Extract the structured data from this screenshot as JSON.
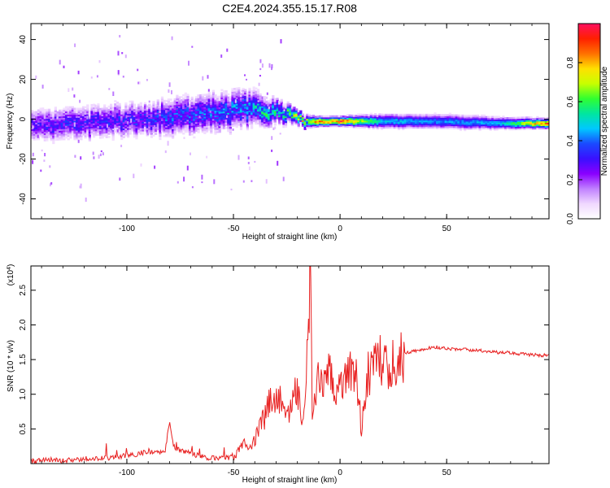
{
  "title": "C2E4.2024.355.15.17.R08",
  "colors": {
    "snr_line": "#e82020",
    "axis": "#000000",
    "colormap": [
      "#ffffff",
      "#f0d8ff",
      "#c080ff",
      "#8a00ff",
      "#3a10ff",
      "#1a4aff",
      "#00c8ff",
      "#00e6a0",
      "#30ff30",
      "#c8ff00",
      "#ffe000",
      "#ff7000",
      "#ff2000",
      "#ff1060"
    ]
  },
  "chart_data": [
    {
      "type": "heatmap",
      "name": "spectrogram",
      "title": "C2E4.2024.355.15.17.R08",
      "xlabel": "Height of straight line (km)",
      "ylabel": "Frequency (Hz)",
      "xlim": [
        -145,
        98
      ],
      "ylim": [
        -50,
        48
      ],
      "x_ticks": [
        -100,
        -50,
        0,
        50
      ],
      "y_ticks": [
        -40,
        -20,
        0,
        20,
        40
      ],
      "x_tick_labels": [
        "-100",
        "-50",
        "0",
        "50"
      ],
      "y_tick_labels": [
        "-40",
        "-20",
        "0",
        "20",
        "40"
      ],
      "ridge": {
        "x": [
          -145,
          -130,
          -120,
          -110,
          -100,
          -90,
          -80,
          -70,
          -60,
          -50,
          -45,
          -40,
          -35,
          -30,
          -25,
          -20,
          -15,
          -10,
          -5,
          0,
          10,
          20,
          40,
          60,
          75,
          98
        ],
        "freq_hz": [
          -3,
          -2,
          -2,
          -1,
          0,
          0,
          1,
          2,
          3,
          4,
          5,
          5,
          4,
          3,
          2,
          0,
          -1,
          -1,
          -1,
          -1,
          -1,
          -1,
          -1,
          -1.5,
          -2,
          -2
        ],
        "amplitude": [
          0.3,
          0.35,
          0.35,
          0.35,
          0.35,
          0.35,
          0.4,
          0.4,
          0.42,
          0.45,
          0.45,
          0.5,
          0.55,
          0.55,
          0.6,
          0.8,
          0.7,
          0.95,
          0.85,
          0.95,
          0.7,
          0.5,
          0.45,
          0.45,
          0.5,
          0.95
        ],
        "spread_hz": [
          7,
          7,
          7,
          7,
          7,
          7,
          8,
          8,
          8,
          8,
          8,
          7,
          6,
          5,
          4,
          3,
          2.5,
          2,
          2,
          2,
          2.5,
          3,
          3,
          3,
          2.5,
          2
        ]
      },
      "colorbar": {
        "label": "Normalized spectral amplitude",
        "range": [
          0,
          1
        ],
        "ticks": [
          0.0,
          0.2,
          0.4,
          0.6,
          0.8
        ],
        "tick_labels": [
          "0.0",
          "0.2",
          "0.4",
          "0.6",
          "0.8"
        ]
      }
    },
    {
      "type": "line",
      "name": "snr",
      "xlabel": "Height of straight line (km)",
      "ylabel": "SNR (10 * v/v)",
      "exponent_label": "(x10",
      "exponent_sup": "4",
      "exponent_close": ")",
      "xlim": [
        -145,
        98
      ],
      "ylim": [
        0,
        2.85
      ],
      "x_ticks": [
        -100,
        -50,
        0,
        50
      ],
      "y_ticks": [
        0.5,
        1.0,
        1.5,
        2.0,
        2.5
      ],
      "x_tick_labels": [
        "-100",
        "-50",
        "0",
        "50"
      ],
      "y_tick_labels": [
        "0.5",
        "1.0",
        "1.5",
        "2.0",
        "2.5"
      ],
      "series": [
        {
          "x": [
            -145,
            -140,
            -135,
            -130,
            -125,
            -120,
            -115,
            -110,
            -105,
            -100,
            -95,
            -90,
            -85,
            -82,
            -80,
            -78,
            -75,
            -70,
            -65,
            -60,
            -55,
            -50,
            -48,
            -45,
            -42,
            -40,
            -38,
            -35,
            -33,
            -30,
            -28,
            -25,
            -23,
            -20,
            -18,
            -16,
            -15,
            -14,
            -13,
            -12,
            -10,
            -8,
            -5,
            -3,
            0,
            2,
            5,
            8,
            10,
            13,
            15,
            18,
            20,
            23,
            25,
            28,
            30,
            35,
            40,
            45,
            50,
            55,
            60,
            65,
            70,
            75,
            80,
            85,
            90,
            95,
            98
          ],
          "y": [
            0.03,
            0.04,
            0.05,
            0.04,
            0.06,
            0.07,
            0.06,
            0.08,
            0.1,
            0.12,
            0.14,
            0.18,
            0.15,
            0.2,
            0.6,
            0.25,
            0.18,
            0.15,
            0.1,
            0.08,
            0.07,
            0.1,
            0.2,
            0.3,
            0.25,
            0.35,
            0.5,
            0.7,
            0.9,
            0.85,
            0.95,
            0.6,
            0.8,
            1.1,
            0.7,
            1.0,
            2.0,
            2.8,
            0.6,
            0.9,
            1.2,
            1.05,
            1.3,
            1.1,
            1.2,
            1.3,
            1.4,
            1.25,
            0.5,
            1.35,
            1.3,
            1.45,
            1.5,
            1.35,
            1.5,
            1.55,
            1.6,
            1.62,
            1.66,
            1.68,
            1.66,
            1.65,
            1.64,
            1.63,
            1.62,
            1.6,
            1.6,
            1.58,
            1.57,
            1.56,
            1.56
          ]
        }
      ]
    }
  ]
}
